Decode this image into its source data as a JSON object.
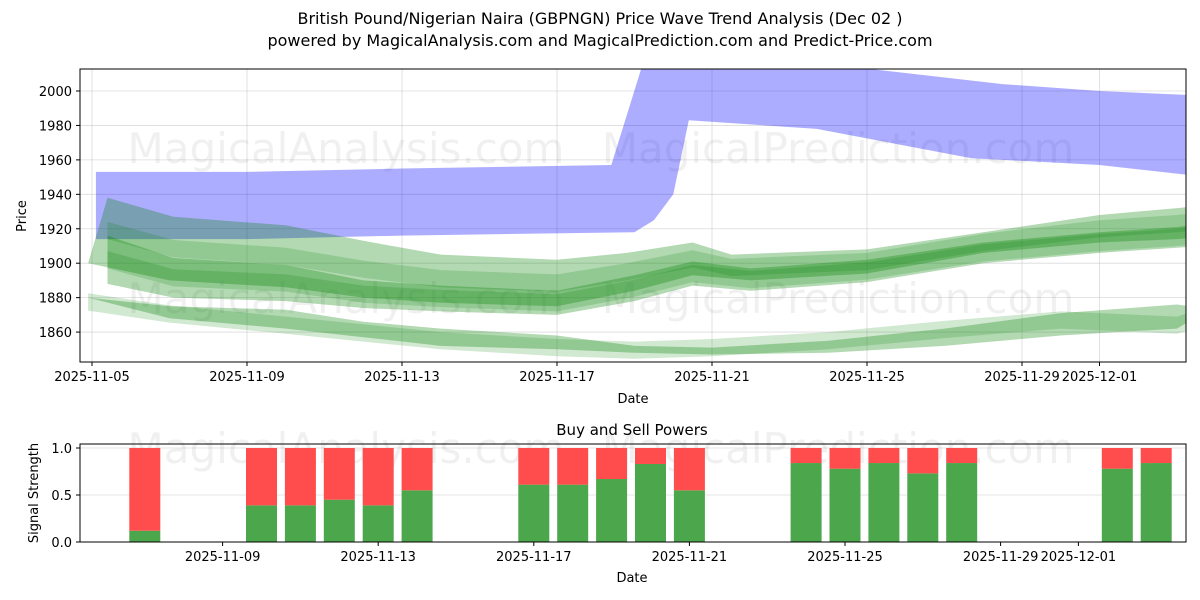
{
  "header": {
    "title": "British Pound/Nigerian Naira (GBPNGN) Price Wave Trend Analysis (Dec 02 )",
    "subtitle": "powered by MagicalAnalysis.com and MagicalPrediction.com and Predict-Price.com"
  },
  "watermarks": [
    "MagicalAnalysis.com",
    "MagicalPrediction.com"
  ],
  "colors": {
    "blue_band": "#0000ff",
    "green_band": "#008000",
    "buy": "#4ca64c",
    "sell": "#ff4c4c",
    "grid": "#dddddd"
  },
  "chart_data": [
    {
      "type": "area",
      "title": "Price Wave Trend",
      "xlabel": "Date",
      "ylabel": "Price",
      "ylim": [
        1842,
        2012
      ],
      "grid": true,
      "x_ticks": [
        "2025-11-05",
        "2025-11-09",
        "2025-11-13",
        "2025-11-17",
        "2025-11-21",
        "2025-11-25",
        "2025-11-29",
        "2025-12-01"
      ],
      "y_ticks": [
        1860,
        1880,
        1900,
        1920,
        1940,
        1960,
        1980,
        2000
      ],
      "series": [
        {
          "name": "blue-wave-band",
          "color": "#0000ff",
          "opacity": 0.32,
          "upper": [
            [
              0.1,
              1953
            ],
            [
              4,
              1953
            ],
            [
              8,
              1955
            ],
            [
              13.4,
              1957
            ],
            [
              14.2,
              2015
            ],
            [
              19.5,
              2015
            ],
            [
              20,
              2013
            ],
            [
              23.5,
              2004
            ],
            [
              26,
              2000
            ],
            [
              29,
              1997
            ],
            [
              31.1,
              1988
            ]
          ],
          "lower": [
            [
              0.1,
              1914
            ],
            [
              4,
              1914
            ],
            [
              8,
              1916
            ],
            [
              14,
              1918
            ],
            [
              14.5,
              1925
            ],
            [
              15.0,
              1940
            ],
            [
              15.4,
              1983
            ],
            [
              18.7,
              1978
            ],
            [
              22.7,
              1961
            ],
            [
              26,
              1957
            ],
            [
              28.8,
              1950
            ]
          ]
        },
        {
          "name": "green-wave-band-upper",
          "color": "#008000",
          "opacity": 0.3,
          "upper": [
            [
              0.4,
              1938
            ],
            [
              2.1,
              1927
            ],
            [
              5,
              1922
            ],
            [
              7,
              1913
            ],
            [
              9,
              1905
            ],
            [
              12,
              1902
            ],
            [
              13.8,
              1906
            ],
            [
              15.5,
              1912
            ],
            [
              16.5,
              1905
            ],
            [
              20,
              1908
            ],
            [
              23,
              1918
            ],
            [
              26,
              1928
            ],
            [
              28,
              1932
            ],
            [
              30.2,
              1937
            ]
          ],
          "lower": [
            [
              -0.1,
              1900
            ],
            [
              2,
              1890
            ],
            [
              5,
              1886
            ],
            [
              7,
              1880
            ],
            [
              9,
              1877
            ],
            [
              12,
              1875
            ],
            [
              14,
              1884
            ],
            [
              15.5,
              1893
            ],
            [
              17,
              1890
            ],
            [
              20,
              1894
            ],
            [
              23,
              1906
            ],
            [
              26,
              1912
            ],
            [
              28,
              1914
            ],
            [
              30.2,
              1918
            ]
          ]
        },
        {
          "name": "green-wave-band-mid",
          "color": "#008000",
          "opacity": 0.3,
          "upper": [
            [
              0.4,
              1916
            ],
            [
              2.1,
              1903
            ],
            [
              5,
              1899
            ],
            [
              7,
              1890
            ],
            [
              9,
              1887
            ],
            [
              12,
              1884
            ],
            [
              14,
              1893
            ],
            [
              15.5,
              1901
            ],
            [
              17,
              1897
            ],
            [
              20,
              1902
            ],
            [
              23,
              1912
            ],
            [
              26,
              1918
            ],
            [
              28,
              1921
            ],
            [
              30.2,
              1928
            ]
          ],
          "lower": [
            [
              0.4,
              1888
            ],
            [
              2.1,
              1880
            ],
            [
              5,
              1878
            ],
            [
              7,
              1874
            ],
            [
              9,
              1872
            ],
            [
              12,
              1870
            ],
            [
              14,
              1878
            ],
            [
              15.5,
              1887
            ],
            [
              17,
              1884
            ],
            [
              20,
              1889
            ],
            [
              23,
              1900
            ],
            [
              26,
              1906
            ],
            [
              28,
              1909
            ],
            [
              30.2,
              1912
            ]
          ]
        },
        {
          "name": "green-wave-band-lower",
          "color": "#008000",
          "opacity": 0.3,
          "upper": [
            [
              -0.1,
              1880
            ],
            [
              2,
              1868
            ],
            [
              5,
              1862
            ],
            [
              7,
              1857
            ],
            [
              9,
              1852
            ],
            [
              12,
              1850
            ],
            [
              14,
              1848
            ],
            [
              16,
              1847
            ],
            [
              19,
              1848
            ],
            [
              22,
              1852
            ],
            [
              25,
              1858
            ],
            [
              28,
              1862
            ],
            [
              31.1,
              1904
            ]
          ],
          "lower": [
            [
              2,
              1875
            ],
            [
              5,
              1873
            ],
            [
              7,
              1866
            ],
            [
              9,
              1862
            ],
            [
              12,
              1858
            ],
            [
              14,
              1852
            ],
            [
              16,
              1851
            ],
            [
              19,
              1855
            ],
            [
              22,
              1862
            ],
            [
              25,
              1871
            ],
            [
              28,
              1876
            ],
            [
              31.1,
              1866
            ]
          ]
        }
      ]
    },
    {
      "type": "bar",
      "title": "Buy and Sell Powers",
      "xlabel": "Date",
      "ylabel": "Signal Strength",
      "ylim": [
        0,
        1.05
      ],
      "y_ticks": [
        "0.0",
        "0.5",
        "1.0"
      ],
      "x_ticks": [
        "2025-11-09",
        "2025-11-13",
        "2025-11-17",
        "2025-11-21",
        "2025-11-25",
        "2025-11-29",
        "2025-12-01"
      ],
      "categories": [
        "2025-11-07",
        "2025-11-10",
        "2025-11-11",
        "2025-11-12",
        "2025-11-13",
        "2025-11-14",
        "2025-11-17",
        "2025-11-18",
        "2025-11-19",
        "2025-11-20",
        "2025-11-21",
        "2025-11-24",
        "2025-11-25",
        "2025-11-26",
        "2025-11-27",
        "2025-11-28",
        "2025-12-02",
        "2025-12-03"
      ],
      "series": [
        {
          "name": "Buy",
          "color": "#4ca64c",
          "values": [
            0.12,
            0.39,
            0.39,
            0.45,
            0.39,
            0.55,
            0.61,
            0.61,
            0.67,
            0.83,
            0.55,
            0.84,
            0.78,
            0.84,
            0.73,
            0.84,
            0.78,
            0.84
          ]
        },
        {
          "name": "Sell",
          "color": "#ff4c4c",
          "values": [
            0.88,
            0.61,
            0.61,
            0.55,
            0.61,
            0.45,
            0.39,
            0.39,
            0.33,
            0.17,
            0.45,
            0.16,
            0.22,
            0.16,
            0.27,
            0.16,
            0.22,
            0.16
          ]
        }
      ]
    }
  ]
}
